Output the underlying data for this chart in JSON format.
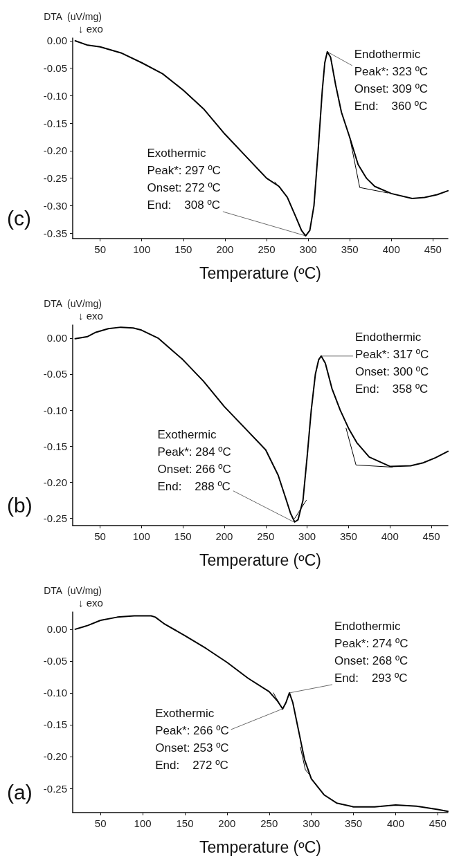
{
  "chart_data": [
    {
      "type": "line",
      "xlabel": "Temperature (ºC)",
      "ylabel": "DTA  (uV/mg)",
      "xlim": [
        17,
        468
      ],
      "xticks": [
        50,
        100,
        150,
        200,
        250,
        300,
        350,
        400,
        450
      ],
      "ylim": [
        -0.36,
        0.005
      ],
      "yticks": [
        {
          "value": 0,
          "label": "0.00"
        },
        {
          "value": -0.05,
          "label": "-0.05"
        },
        {
          "value": -0.1,
          "label": "-0.10"
        },
        {
          "value": -0.15,
          "label": "-0.15"
        },
        {
          "value": -0.2,
          "label": "-0.20"
        },
        {
          "value": -0.25,
          "label": "-0.25"
        },
        {
          "value": -0.3,
          "label": "-0.30"
        },
        {
          "value": -0.35,
          "label": "-0.35"
        }
      ],
      "series": [
        {
          "color": "#000000",
          "x": [
            20,
            35,
            50,
            75,
            100,
            125,
            150,
            175,
            200,
            225,
            250,
            265,
            275,
            285,
            292,
            297,
            302,
            307,
            312,
            317,
            320,
            323,
            327,
            333,
            340,
            350,
            360,
            370,
            380,
            400,
            425,
            440,
            455,
            468
          ],
          "values": [
            0.0,
            -0.008,
            -0.011,
            -0.022,
            -0.04,
            -0.06,
            -0.09,
            -0.125,
            -0.17,
            -0.21,
            -0.25,
            -0.265,
            -0.285,
            -0.32,
            -0.345,
            -0.355,
            -0.345,
            -0.3,
            -0.2,
            -0.09,
            -0.04,
            -0.02,
            -0.03,
            -0.08,
            -0.13,
            -0.176,
            -0.225,
            -0.25,
            -0.265,
            -0.278,
            -0.287,
            -0.285,
            -0.28,
            -0.273
          ]
        },
        {
          "color": "#000000",
          "x": [
            260,
            274
          ],
          "values": [
            -0.257,
            -0.283
          ]
        },
        {
          "color": "#000000",
          "x": [
            350,
            362,
            396
          ],
          "values": [
            -0.176,
            -0.267,
            -0.277
          ]
        }
      ],
      "annotations": [
        "↓ exo",
        "(c)",
        {
          "text": "Exothermic\nPeak*: 297 ºC\nOnset: 272 ºC\nEnd:    308 ºC",
          "x": 297,
          "y": -0.355
        },
        {
          "text": "Endothermic\nPeak*: 323 ºC\nOnset: 309 ºC\nEnd:    360 ºC",
          "x": 323,
          "y": -0.02
        }
      ]
    },
    {
      "type": "line",
      "xlabel": "Temperature (ºC)",
      "ylabel": "DTA  (uV/mg)",
      "xlim": [
        17,
        470
      ],
      "xticks": [
        50,
        100,
        150,
        200,
        250,
        300,
        350,
        400,
        450
      ],
      "ylim": [
        -0.26,
        0.018
      ],
      "yticks": [
        {
          "value": 0,
          "label": "0.00"
        },
        {
          "value": -0.05,
          "label": "-0.05"
        },
        {
          "value": -0.1,
          "label": "-0.10"
        },
        {
          "value": -0.15,
          "label": "-0.15"
        },
        {
          "value": -0.2,
          "label": "-0.20"
        },
        {
          "value": -0.25,
          "label": "-0.25"
        }
      ],
      "series": [
        {
          "color": "#000000",
          "x": [
            20,
            30,
            35,
            45,
            60,
            75,
            90,
            100,
            120,
            150,
            175,
            200,
            225,
            250,
            265,
            275,
            280,
            285,
            289,
            295,
            300,
            305,
            310,
            314,
            317,
            322,
            330,
            340,
            350,
            360,
            375,
            400,
            425,
            440,
            455,
            470
          ],
          "values": [
            -0.001,
            0.001,
            0.002,
            0.008,
            0.013,
            0.015,
            0.014,
            0.011,
            0.0,
            -0.03,
            -0.06,
            -0.095,
            -0.125,
            -0.155,
            -0.19,
            -0.225,
            -0.243,
            -0.255,
            -0.252,
            -0.225,
            -0.165,
            -0.1,
            -0.05,
            -0.03,
            -0.025,
            -0.035,
            -0.07,
            -0.1,
            -0.125,
            -0.145,
            -0.165,
            -0.178,
            -0.177,
            -0.173,
            -0.166,
            -0.157
          ]
        },
        {
          "color": "#000000",
          "x": [
            285,
            299
          ],
          "values": [
            -0.25,
            -0.225
          ]
        },
        {
          "color": "#000000",
          "x": [
            347,
            359,
            403
          ],
          "values": [
            -0.125,
            -0.176,
            -0.179
          ]
        }
      ],
      "annotations": [
        "↓ exo",
        "(b)",
        {
          "text": "Exothermic\nPeak*: 284 ºC\nOnset: 266 ºC\nEnd:    288 ºC",
          "x": 284,
          "y": -0.255
        },
        {
          "text": "Endothermic\nPeak*: 317 ºC\nOnset: 300 ºC\nEnd:    358 ºC",
          "x": 317,
          "y": -0.025
        }
      ]
    },
    {
      "type": "line",
      "xlabel": "Temperature (ºC)",
      "ylabel": "DTA  (uV/mg)",
      "xlim": [
        17,
        462
      ],
      "xticks": [
        50,
        100,
        150,
        200,
        250,
        300,
        350,
        400,
        450
      ],
      "ylim": [
        -0.288,
        0.027
      ],
      "yticks": [
        {
          "value": 0,
          "label": "0.00"
        },
        {
          "value": -0.05,
          "label": "-0.05"
        },
        {
          "value": -0.1,
          "label": "-0.10"
        },
        {
          "value": -0.15,
          "label": "-0.15"
        },
        {
          "value": -0.2,
          "label": "-0.20"
        },
        {
          "value": -0.25,
          "label": "-0.25"
        }
      ],
      "series": [
        {
          "color": "#000000",
          "x": [
            20,
            30,
            35,
            50,
            70,
            90,
            110,
            115,
            125,
            150,
            175,
            200,
            225,
            250,
            260,
            266,
            270,
            274,
            278,
            285,
            292,
            300,
            315,
            330,
            350,
            375,
            400,
            425,
            450,
            462
          ],
          "values": [
            0.0,
            0.004,
            0.006,
            0.014,
            0.019,
            0.021,
            0.021,
            0.019,
            0.009,
            -0.01,
            -0.03,
            -0.052,
            -0.077,
            -0.098,
            -0.113,
            -0.125,
            -0.115,
            -0.1,
            -0.115,
            -0.16,
            -0.205,
            -0.235,
            -0.26,
            -0.273,
            -0.279,
            -0.279,
            -0.276,
            -0.278,
            -0.283,
            -0.286
          ]
        },
        {
          "color": "#000000",
          "x": [
            255,
            266
          ],
          "values": [
            -0.1,
            -0.126
          ]
        },
        {
          "color": "#000000",
          "x": [
            287,
            293,
            299
          ],
          "values": [
            -0.185,
            -0.221,
            -0.23
          ]
        }
      ],
      "annotations": [
        "↓ exo",
        "(a)",
        {
          "text": "Exothermic\nPeak*: 266 ºC\nOnset: 253 ºC\nEnd:    272 ºC",
          "x": 266,
          "y": -0.125
        },
        {
          "text": "Endothermic\nPeak*: 274 ºC\nOnset: 268 ºC\nEnd:    293 ºC",
          "x": 274,
          "y": -0.1
        }
      ]
    }
  ]
}
